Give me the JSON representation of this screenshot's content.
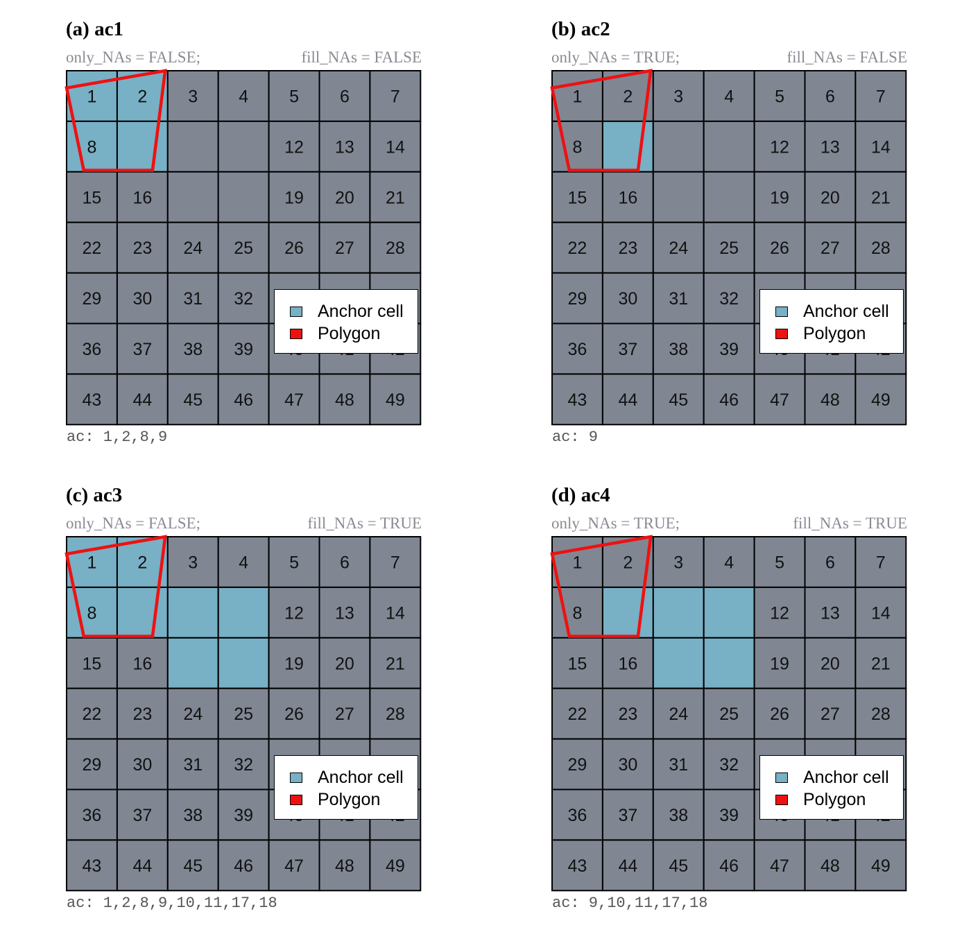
{
  "colors": {
    "cell": "#808793",
    "anchor": "#78b0c5",
    "grid_line": "#000000",
    "polygon": "#ee1111",
    "text": "#111111",
    "subtitle": "#8a8a94"
  },
  "legend": {
    "anchor_label": "Anchor cell",
    "polygon_label": "Polygon"
  },
  "grid": {
    "rows": 7,
    "cols": 7
  },
  "panels": [
    {
      "title": "(a) ac1",
      "subtitle_left": "only_NAs = FALSE;",
      "subtitle_right": "fill_NAs = FALSE",
      "anchor_cells": [
        1,
        2,
        8,
        9
      ],
      "na_cells": [
        9,
        10,
        11,
        17,
        18
      ],
      "ac_text": "ac: 1,2,8,9"
    },
    {
      "title": "(b) ac2",
      "subtitle_left": "only_NAs = TRUE;",
      "subtitle_right": "fill_NAs = FALSE",
      "anchor_cells": [
        9
      ],
      "na_cells": [
        9,
        10,
        11,
        17,
        18
      ],
      "ac_text": "ac: 9"
    },
    {
      "title": "(c) ac3",
      "subtitle_left": "only_NAs = FALSE;",
      "subtitle_right": "fill_NAs = TRUE",
      "anchor_cells": [
        1,
        2,
        8,
        9,
        10,
        11,
        17,
        18
      ],
      "na_cells": [
        9,
        10,
        11,
        17,
        18
      ],
      "ac_text": "ac: 1,2,8,9,10,11,17,18"
    },
    {
      "title": "(d) ac4",
      "subtitle_left": "only_NAs = TRUE;",
      "subtitle_right": "fill_NAs = TRUE",
      "anchor_cells": [
        9,
        10,
        11,
        17,
        18
      ],
      "na_cells": [
        9,
        10,
        11,
        17,
        18
      ],
      "ac_text": "ac: 9,10,11,17,18"
    }
  ]
}
